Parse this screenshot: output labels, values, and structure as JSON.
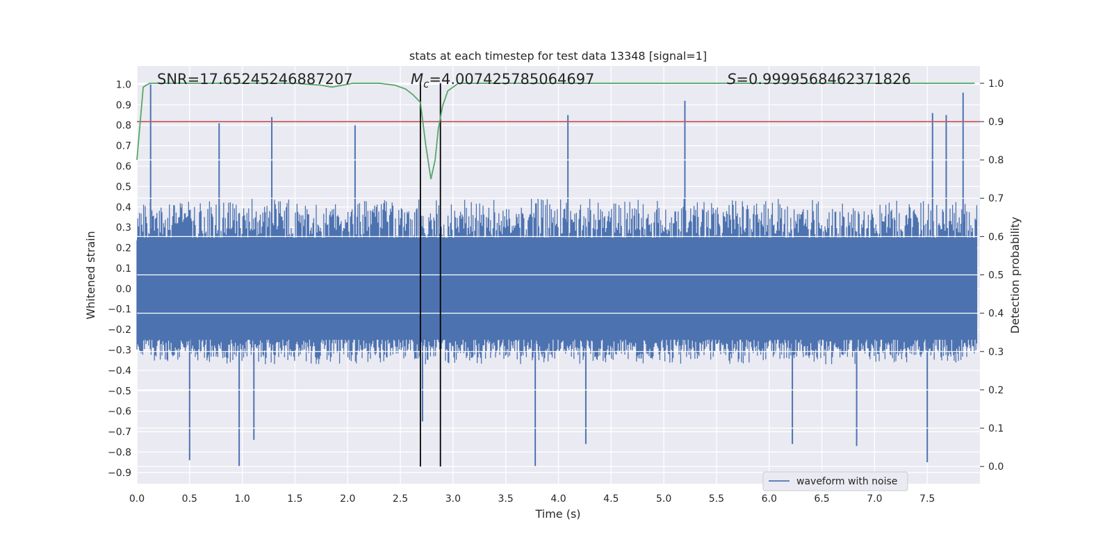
{
  "chart_data": {
    "type": "line",
    "title": "stats at each timestep for test data 13348 [signal=1]",
    "xlabel": "Time (s)",
    "ylabel_left": "Whitened strain",
    "ylabel_right": "Detection probability",
    "xlim": [
      0.0,
      8.0
    ],
    "ylim_left": [
      -0.955,
      1.09
    ],
    "ylim_right": [
      -0.045,
      1.045
    ],
    "x_ticks": [
      "0.0",
      "0.5",
      "1.0",
      "1.5",
      "2.0",
      "2.5",
      "3.0",
      "3.5",
      "4.0",
      "4.5",
      "5.0",
      "5.5",
      "6.0",
      "6.5",
      "7.0",
      "7.5"
    ],
    "y_ticks_left": [
      "1.0",
      "0.9",
      "0.8",
      "0.7",
      "0.6",
      "0.5",
      "0.4",
      "0.3",
      "0.2",
      "0.1",
      "0.0",
      "−0.1",
      "−0.2",
      "−0.3",
      "−0.4",
      "−0.5",
      "−0.6",
      "−0.7",
      "−0.8",
      "−0.9"
    ],
    "y_ticks_right": [
      "1.0",
      "0.9",
      "0.8",
      "0.7",
      "0.6",
      "0.5",
      "0.4",
      "0.3",
      "0.2",
      "0.1",
      "0.0"
    ],
    "grid": true,
    "legend_placement": "lower-right",
    "annotations": {
      "snr": "SNR=17.65245246887207",
      "mc_symbol": "M",
      "mc_sub": "c",
      "mc_value": "=4.007425785064697",
      "s_symbol": "S",
      "s_value": "=0.9999568462371826"
    },
    "series": [
      {
        "name": "waveform with noise",
        "axis": "left",
        "color": "#4c72b0",
        "envelope_upper": {
          "t": [
            0.0,
            1.0,
            2.0,
            3.0,
            4.0,
            5.0,
            6.0,
            7.0,
            7.95
          ],
          "y": [
            0.42,
            0.44,
            0.44,
            0.44,
            0.44,
            0.44,
            0.44,
            0.44,
            0.42
          ]
        },
        "envelope_lower": {
          "t": [
            0.0,
            1.0,
            2.0,
            3.0,
            4.0,
            5.0,
            6.0,
            7.0,
            7.95
          ],
          "y": [
            -0.36,
            -0.37,
            -0.37,
            -0.37,
            -0.37,
            -0.37,
            -0.37,
            -0.37,
            -0.36
          ]
        },
        "peaks": {
          "t": [
            0.13,
            0.78,
            1.28,
            2.07,
            4.09,
            5.2,
            7.55,
            7.68,
            7.84
          ],
          "y": [
            1.0,
            0.81,
            0.84,
            0.8,
            0.85,
            0.92,
            0.86,
            0.85,
            0.96
          ]
        },
        "troughs": {
          "t": [
            0.5,
            0.97,
            1.11,
            2.71,
            3.78,
            4.26,
            6.22,
            6.83,
            7.5
          ],
          "y": [
            -0.84,
            -0.87,
            -0.74,
            -0.65,
            -0.87,
            -0.76,
            -0.76,
            -0.77,
            -0.85
          ]
        }
      },
      {
        "axis": "right",
        "color": "#55a868",
        "t": [
          0.0,
          0.06,
          0.12,
          0.3,
          0.6,
          1.0,
          1.5,
          1.75,
          1.85,
          1.95,
          2.05,
          2.3,
          2.45,
          2.55,
          2.62,
          2.69,
          2.74,
          2.79,
          2.83,
          2.86,
          2.9,
          2.95,
          3.05,
          3.3,
          4.0,
          5.0,
          6.0,
          7.0,
          7.95
        ],
        "p": [
          0.8,
          0.99,
          1.0,
          1.0,
          1.0,
          1.0,
          1.0,
          0.995,
          0.99,
          0.995,
          1.0,
          1.0,
          0.995,
          0.985,
          0.97,
          0.95,
          0.84,
          0.75,
          0.8,
          0.88,
          0.94,
          0.98,
          1.0,
          1.0,
          1.0,
          1.0,
          1.0,
          1.0,
          1.0
        ]
      }
    ],
    "threshold": {
      "axis": "right",
      "value": 0.9,
      "color": "#c44e52"
    },
    "event_window": {
      "t_start": 2.69,
      "t_end": 2.88,
      "color": "#000000"
    }
  }
}
